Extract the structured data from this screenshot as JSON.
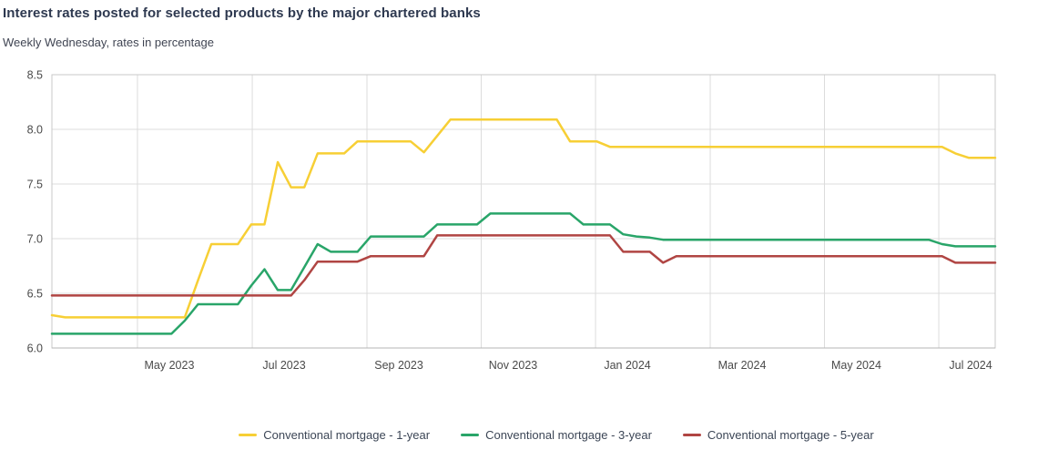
{
  "header": {
    "title": "Interest rates posted for selected products by the major chartered banks",
    "subtitle": "Weekly Wednesday, rates in percentage"
  },
  "colors": {
    "series_1yr": "#F7CF35",
    "series_3yr": "#29A569",
    "series_5yr": "#B04543",
    "grid": "#dcdcdc",
    "plot_border": "#c9c9c9",
    "tick_text": "#4a4a4a"
  },
  "chart_data": {
    "type": "line",
    "title": "Interest rates posted for selected products by the major chartered banks",
    "subtitle": "Weekly Wednesday, rates in percentage",
    "x_unit": "weekly (Wednesday observations)",
    "x_tick_labels": [
      "May 2023",
      "Jul 2023",
      "Sep 2023",
      "Nov 2023",
      "Jan 2024",
      "Mar 2024",
      "May 2024",
      "Jul 2024"
    ],
    "y_tick_labels": [
      "8.5",
      "8.0",
      "7.5",
      "7.0",
      "6.5",
      "6.0"
    ],
    "ylim": [
      6.0,
      8.5
    ],
    "grid": true,
    "legend_position": "bottom",
    "series": [
      {
        "name": "Conventional mortgage - 1-year",
        "color": "#F7CF35",
        "values": [
          6.3,
          6.28,
          6.28,
          6.28,
          6.28,
          6.28,
          6.28,
          6.28,
          6.28,
          6.28,
          6.28,
          6.62,
          6.95,
          6.95,
          6.95,
          7.13,
          7.13,
          7.7,
          7.47,
          7.47,
          7.78,
          7.78,
          7.78,
          7.89,
          7.89,
          7.89,
          7.89,
          7.89,
          7.79,
          7.94,
          8.09,
          8.09,
          8.09,
          8.09,
          8.09,
          8.09,
          8.09,
          8.09,
          8.09,
          7.89,
          7.89,
          7.89,
          7.84,
          7.84,
          7.84,
          7.84,
          7.84,
          7.84,
          7.84,
          7.84,
          7.84,
          7.84,
          7.84,
          7.84,
          7.84,
          7.84,
          7.84,
          7.84,
          7.84,
          7.84,
          7.84,
          7.84,
          7.84,
          7.84,
          7.84,
          7.84,
          7.84,
          7.84,
          7.78,
          7.74,
          7.74,
          7.74
        ]
      },
      {
        "name": "Conventional mortgage - 3-year",
        "color": "#29A569",
        "values": [
          6.13,
          6.13,
          6.13,
          6.13,
          6.13,
          6.13,
          6.13,
          6.13,
          6.13,
          6.13,
          6.25,
          6.4,
          6.4,
          6.4,
          6.4,
          6.57,
          6.72,
          6.53,
          6.53,
          6.74,
          6.95,
          6.88,
          6.88,
          6.88,
          7.02,
          7.02,
          7.02,
          7.02,
          7.02,
          7.13,
          7.13,
          7.13,
          7.13,
          7.23,
          7.23,
          7.23,
          7.23,
          7.23,
          7.23,
          7.23,
          7.13,
          7.13,
          7.13,
          7.04,
          7.02,
          7.01,
          6.99,
          6.99,
          6.99,
          6.99,
          6.99,
          6.99,
          6.99,
          6.99,
          6.99,
          6.99,
          6.99,
          6.99,
          6.99,
          6.99,
          6.99,
          6.99,
          6.99,
          6.99,
          6.99,
          6.99,
          6.99,
          6.95,
          6.93,
          6.93,
          6.93,
          6.93
        ]
      },
      {
        "name": "Conventional mortgage - 5-year",
        "color": "#B04543",
        "values": [
          6.48,
          6.48,
          6.48,
          6.48,
          6.48,
          6.48,
          6.48,
          6.48,
          6.48,
          6.48,
          6.48,
          6.48,
          6.48,
          6.48,
          6.48,
          6.48,
          6.48,
          6.48,
          6.48,
          6.62,
          6.79,
          6.79,
          6.79,
          6.79,
          6.84,
          6.84,
          6.84,
          6.84,
          6.84,
          7.03,
          7.03,
          7.03,
          7.03,
          7.03,
          7.03,
          7.03,
          7.03,
          7.03,
          7.03,
          7.03,
          7.03,
          7.03,
          7.03,
          6.88,
          6.88,
          6.88,
          6.78,
          6.84,
          6.84,
          6.84,
          6.84,
          6.84,
          6.84,
          6.84,
          6.84,
          6.84,
          6.84,
          6.84,
          6.84,
          6.84,
          6.84,
          6.84,
          6.84,
          6.84,
          6.84,
          6.84,
          6.84,
          6.84,
          6.78,
          6.78,
          6.78,
          6.78
        ]
      }
    ]
  }
}
